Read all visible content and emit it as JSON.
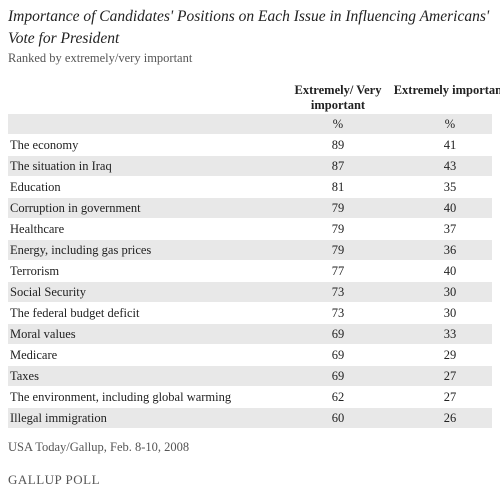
{
  "header": {
    "title": "Importance of Candidates' Positions on Each Issue in Influencing Americans' Vote for President",
    "subtitle": "Ranked by extremely/very important"
  },
  "table": {
    "columns": [
      "Extremely/ Very important",
      "Extremely important"
    ],
    "units": [
      "%",
      "%"
    ],
    "rows": [
      [
        "The economy",
        89,
        41
      ],
      [
        "The situation in Iraq",
        87,
        43
      ],
      [
        "Education",
        81,
        35
      ],
      [
        "Corruption in government",
        79,
        40
      ],
      [
        "Healthcare",
        79,
        37
      ],
      [
        "Energy, including gas prices",
        79,
        36
      ],
      [
        "Terrorism",
        77,
        40
      ],
      [
        "Social Security",
        73,
        30
      ],
      [
        "The federal budget deficit",
        73,
        30
      ],
      [
        "Moral values",
        69,
        33
      ],
      [
        "Medicare",
        69,
        29
      ],
      [
        "Taxes",
        69,
        27
      ],
      [
        "The environment, including global warming",
        62,
        27
      ],
      [
        "Illegal immigration",
        60,
        26
      ]
    ]
  },
  "footer": {
    "source": "USA Today/Gallup, Feb. 8-10, 2008",
    "logo": "GALLUP POLL"
  }
}
